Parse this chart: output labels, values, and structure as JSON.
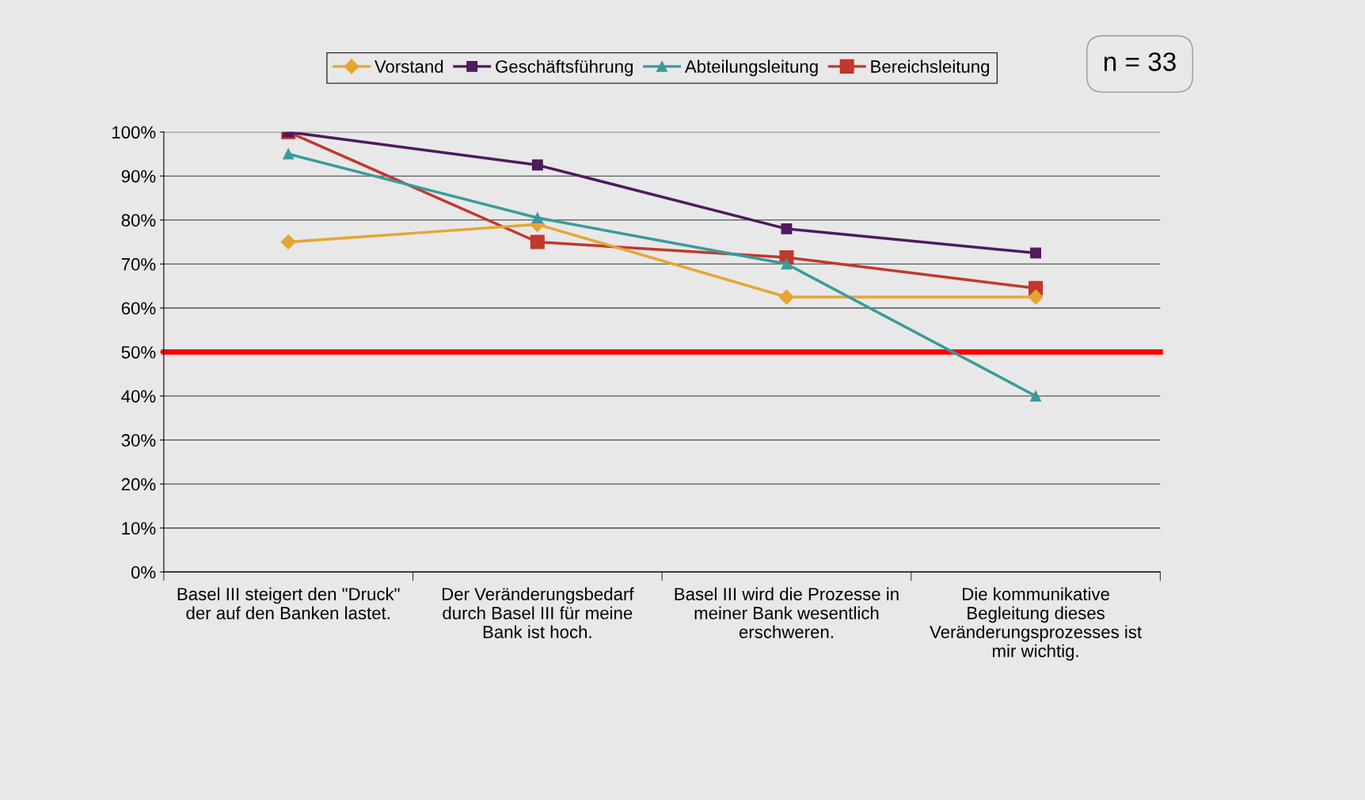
{
  "chart_data": {
    "type": "line",
    "categories": [
      "Basel III steigert den \"Druck\"\nder auf den Banken lastet.",
      "Der Veränderungsbedarf\ndurch Basel III für meine\nBank ist hoch.",
      "Basel III wird die Prozesse in\nmeiner Bank wesentlich\nerschweren.",
      "Die kommunikative\nBegleitung dieses\nVeränderungsprozesses ist\nmir wichtig."
    ],
    "series": [
      {
        "name": "Vorstand",
        "color": "#e6a532",
        "marker": "diamond",
        "values": [
          75,
          79,
          62.5,
          62.5
        ]
      },
      {
        "name": "Geschäftsführung",
        "color": "#4f1a5e",
        "marker": "square",
        "values": [
          100,
          92.5,
          78,
          72.5
        ]
      },
      {
        "name": "Abteilungsleitung",
        "color": "#3a9b9b",
        "marker": "triangle",
        "values": [
          95,
          80.5,
          70,
          40
        ]
      },
      {
        "name": "Bereichsleitung",
        "color": "#c0392b",
        "marker": "square",
        "values": [
          100,
          75,
          71.5,
          64.5
        ]
      }
    ],
    "ylim": [
      0,
      100
    ],
    "yticks": [
      {
        "value": 0,
        "label": "0%"
      },
      {
        "value": 10,
        "label": "10%"
      },
      {
        "value": 20,
        "label": "20%"
      },
      {
        "value": 30,
        "label": "30%"
      },
      {
        "value": 40,
        "label": "40%"
      },
      {
        "value": 50,
        "label": "50%"
      },
      {
        "value": 60,
        "label": "60%"
      },
      {
        "value": 70,
        "label": "70%"
      },
      {
        "value": 80,
        "label": "80%"
      },
      {
        "value": 90,
        "label": "90%"
      },
      {
        "value": 100,
        "label": "100%"
      }
    ],
    "ref_lines": [
      {
        "axis": "y",
        "value": 50,
        "color": "#ff0000"
      }
    ],
    "annotations": [
      "n = 33"
    ],
    "grid": "y",
    "legend": "top"
  }
}
